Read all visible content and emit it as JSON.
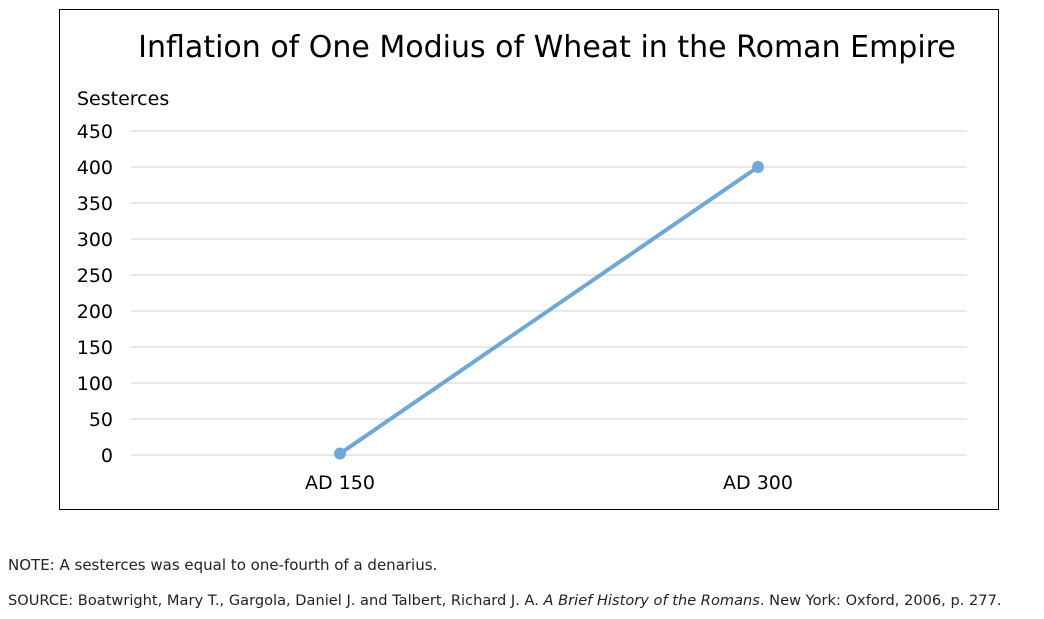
{
  "chart_data": {
    "type": "line",
    "title": "Inflation of One Modius of Wheat in the Roman Empire",
    "ylabel": "Sesterces",
    "xlabel": "",
    "categories": [
      "AD 150",
      "AD 300"
    ],
    "series": [
      {
        "values": [
          2,
          400
        ]
      }
    ],
    "ylim": [
      0,
      450
    ],
    "yticks": [
      0,
      50,
      100,
      150,
      200,
      250,
      300,
      350,
      400,
      450
    ],
    "grid": true,
    "legend": "none",
    "line_color": "#6fa8d6"
  },
  "notes": {
    "note": "NOTE: A sesterces was equal to one-fourth of a denarius.",
    "source_prefix": "SOURCE: Boatwright, Mary T., Gargola, Daniel J. and Talbert, Richard J. A. ",
    "source_title": "A Brief History of the Romans",
    "source_suffix": ". New York: Oxford, 2006, p. 277."
  }
}
